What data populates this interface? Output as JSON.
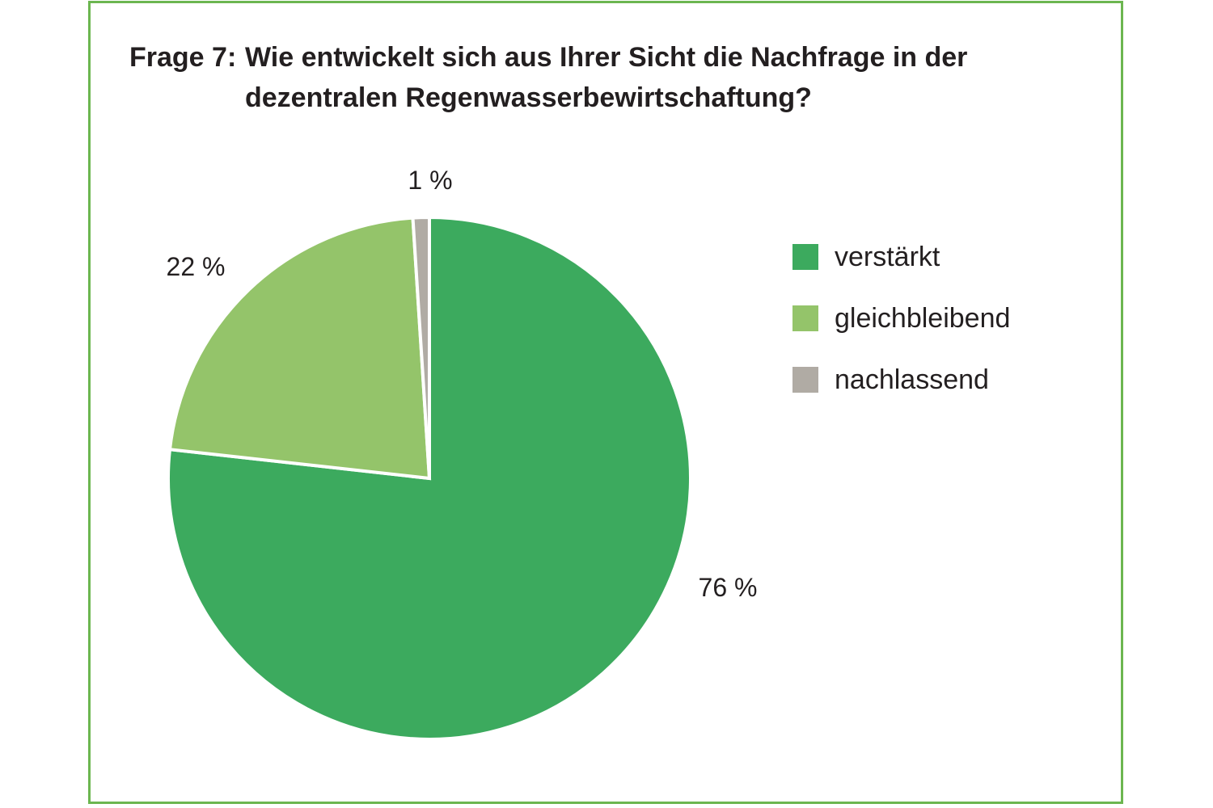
{
  "chart_data": {
    "type": "pie",
    "title": {
      "prefix": "Frage 7:",
      "line1": "Wie entwickelt sich aus Ihrer Sicht die Nachfrage in der",
      "line2": "dezentralen Regenwasserbewirtschaftung?"
    },
    "slices": [
      {
        "name": "verstärkt",
        "value": 76,
        "label": "76 %",
        "color": "#3caa5e"
      },
      {
        "name": "gleichbleibend",
        "value": 22,
        "label": "22 %",
        "color": "#94c46a"
      },
      {
        "name": "nachlassend",
        "value": 1,
        "label": "1 %",
        "color": "#b0aba4"
      }
    ],
    "legend_position": "right",
    "frame_color": "#6cb650"
  }
}
